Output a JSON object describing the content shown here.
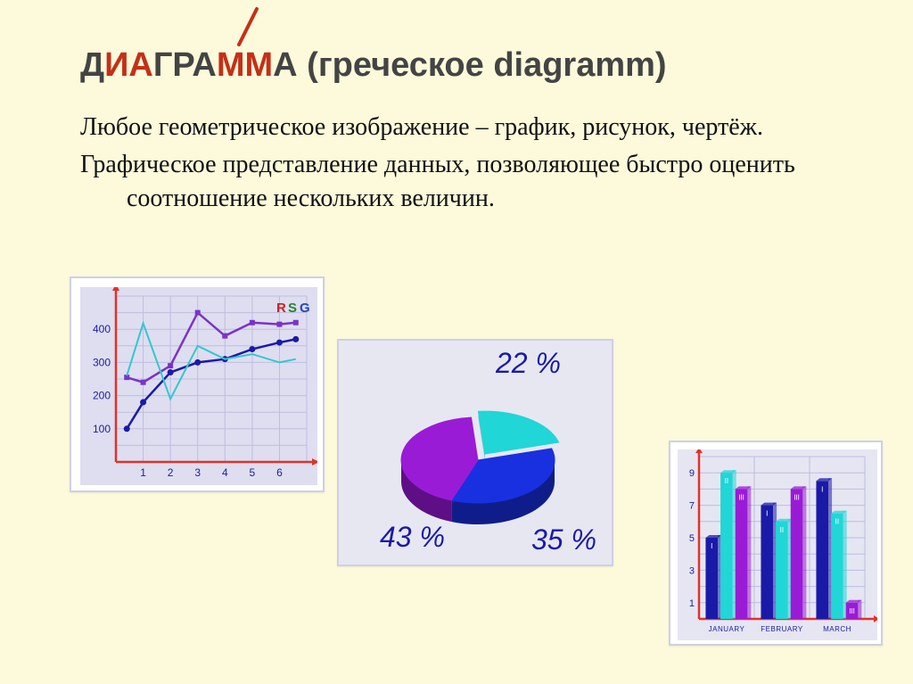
{
  "title": {
    "segments": [
      {
        "text": "Д",
        "color": "#444"
      },
      {
        "text": "И",
        "color": "#c43018"
      },
      {
        "text": "А",
        "color": "#c43018"
      },
      {
        "text": "ГР",
        "color": "#444"
      },
      {
        "text": "А",
        "color": "#444"
      },
      {
        "text": "ММ",
        "color": "#c43018"
      },
      {
        "text": "А",
        "color": "#444"
      },
      {
        "text": " (греческое diagramm)",
        "color": "#444"
      }
    ],
    "accent_color": "#c43018",
    "font_size": 38
  },
  "body": {
    "paragraphs": [
      "Любое геометрическое изображение – график, рисунок, чертёж.",
      "Графическое представление данных, позволяющее быстро оценить соотношение нескольких величин."
    ],
    "font_size": 28,
    "color": "#111111"
  },
  "line_chart": {
    "type": "line",
    "background": "#dedef0",
    "grid_color": "#bdbde0",
    "axis_color": "#e1322a",
    "x_ticks": [
      1,
      2,
      3,
      4,
      5,
      6
    ],
    "y_ticks": [
      100,
      200,
      300,
      400
    ],
    "xlim": [
      0,
      7
    ],
    "ylim": [
      0,
      500
    ],
    "watermark": {
      "text": "RSG",
      "colors": [
        "#cc2222",
        "#228822",
        "#2244cc"
      ]
    },
    "series": [
      {
        "name": "blue",
        "color": "#1a1aa8",
        "width": 2.5,
        "marker": "circle",
        "points": [
          [
            0.4,
            100
          ],
          [
            1,
            180
          ],
          [
            2,
            270
          ],
          [
            3,
            300
          ],
          [
            4,
            310
          ],
          [
            5,
            340
          ],
          [
            6,
            360
          ],
          [
            6.6,
            370
          ]
        ]
      },
      {
        "name": "purple",
        "color": "#7a33c9",
        "width": 2.5,
        "marker": "square",
        "points": [
          [
            0.4,
            255
          ],
          [
            1,
            240
          ],
          [
            2,
            290
          ],
          [
            3,
            450
          ],
          [
            4,
            380
          ],
          [
            5,
            420
          ],
          [
            6,
            415
          ],
          [
            6.6,
            420
          ]
        ]
      },
      {
        "name": "cyan",
        "color": "#35c6cf",
        "width": 2,
        "marker": "none",
        "points": [
          [
            0.4,
            260
          ],
          [
            1,
            418
          ],
          [
            2,
            190
          ],
          [
            3,
            350
          ],
          [
            4,
            310
          ],
          [
            5,
            325
          ],
          [
            6,
            300
          ],
          [
            6.6,
            310
          ]
        ]
      }
    ]
  },
  "pie_chart": {
    "type": "pie-3d",
    "background": "#e7e7f2",
    "label_color": "#1a1aa8",
    "label_fontsize": 32,
    "slices": [
      {
        "label": "22 %",
        "value": 22,
        "color": "#20d6d6",
        "side": "#159a9a",
        "explode": 14
      },
      {
        "label": "35 %",
        "value": 35,
        "color": "#1830e0",
        "side": "#0f1d8a",
        "explode": 0
      },
      {
        "label": "43 %",
        "value": 43,
        "color": "#9a1bd6",
        "side": "#5e0f85",
        "explode": 0
      }
    ]
  },
  "bar_chart": {
    "type": "grouped-bar",
    "background": "#e6e6f2",
    "grid_color": "#bcbce0",
    "axis_color": "#e1322a",
    "y_ticks": [
      1,
      3,
      5,
      7,
      9
    ],
    "ylim": [
      0,
      10
    ],
    "categories": [
      "JANUARY",
      "FEBRUARY",
      "MARCH"
    ],
    "category_fontsize": 8,
    "category_color": "#1a1aa8",
    "series_colors": [
      "#1a1aa8",
      "#20d6d6",
      "#9a1bd6"
    ],
    "series_labels": [
      "I",
      "II",
      "III"
    ],
    "groups": [
      {
        "category": "JANUARY",
        "values": [
          5,
          9,
          8
        ]
      },
      {
        "category": "FEBRUARY",
        "values": [
          7,
          6,
          8
        ]
      },
      {
        "category": "MARCH",
        "values": [
          8.5,
          6.5,
          1
        ]
      }
    ],
    "bar_width": 0.22
  },
  "layout": {
    "page_bg": "#fcfadb",
    "panel_border": "#cfcfe6"
  }
}
